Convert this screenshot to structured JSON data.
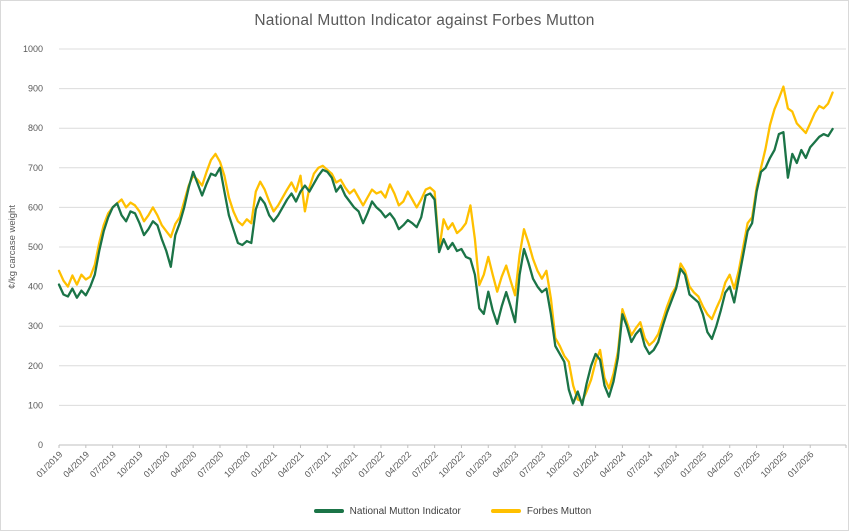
{
  "title": "National Mutton Indicator against Forbes Mutton",
  "colors": {
    "national_mutton_indicator": "#1B7447",
    "forbes_mutton": "#FFC000",
    "gridline": "#DCDCDC",
    "axis_line": "#BFBFBF",
    "tick_label": "#595959",
    "title_text": "#595959",
    "legend_text": "#404040",
    "background": "#FFFFFF"
  },
  "chart_data": {
    "type": "line",
    "title": "National Mutton Indicator against Forbes Mutton",
    "xlabel": "",
    "ylabel": "¢/kg carcase weight",
    "ylim": [
      0,
      1000
    ],
    "y_ticks": [
      0,
      100,
      200,
      300,
      400,
      500,
      600,
      700,
      800,
      900,
      1000
    ],
    "grid": true,
    "legend_position": "bottom",
    "x_unit": "month/year, data sampled twice monthly from 01/2019",
    "points_per_month": 2,
    "x_tick_interval_months": 3,
    "x_tick_labels": [
      "01/2019",
      "04/2019",
      "07/2019",
      "10/2019",
      "01/2020",
      "04/2020",
      "07/2020",
      "10/2020",
      "01/2021",
      "04/2021",
      "07/2021",
      "10/2021",
      "01/2022",
      "04/2022",
      "07/2022",
      "10/2022",
      "01/2023",
      "04/2023",
      "07/2023",
      "10/2023",
      "01/2024",
      "04/2024",
      "07/2024",
      "10/2024",
      "01/2025",
      "04/2025",
      "07/2025",
      "10/2025",
      "01/2026"
    ],
    "series": [
      {
        "name": "National Mutton Indicator",
        "color": "#1B7447",
        "values": [
          405,
          380,
          375,
          395,
          372,
          390,
          378,
          400,
          430,
          490,
          540,
          575,
          600,
          610,
          580,
          565,
          590,
          585,
          560,
          530,
          545,
          565,
          555,
          520,
          490,
          450,
          530,
          560,
          600,
          650,
          690,
          660,
          630,
          660,
          685,
          680,
          700,
          640,
          580,
          545,
          510,
          505,
          515,
          510,
          595,
          625,
          610,
          580,
          565,
          580,
          600,
          620,
          635,
          615,
          640,
          655,
          640,
          660,
          680,
          695,
          690,
          675,
          640,
          655,
          630,
          615,
          600,
          590,
          560,
          585,
          615,
          600,
          590,
          575,
          585,
          570,
          545,
          555,
          568,
          560,
          550,
          575,
          630,
          635,
          620,
          487,
          520,
          495,
          510,
          490,
          495,
          475,
          470,
          430,
          345,
          331,
          387,
          340,
          306,
          350,
          386,
          350,
          310,
          430,
          495,
          460,
          420,
          400,
          386,
          395,
          330,
          250,
          230,
          210,
          140,
          105,
          135,
          101,
          155,
          200,
          230,
          215,
          150,
          122,
          160,
          220,
          330,
          300,
          260,
          280,
          293,
          250,
          230,
          240,
          260,
          300,
          335,
          365,
          395,
          445,
          430,
          380,
          370,
          360,
          330,
          285,
          268,
          300,
          340,
          385,
          400,
          360,
          420,
          480,
          540,
          560,
          640,
          690,
          700,
          725,
          745,
          785,
          790,
          675,
          735,
          712,
          745,
          725,
          752,
          765,
          778,
          785,
          780,
          798
        ]
      },
      {
        "name": "Forbes Mutton",
        "color": "#FFC000",
        "values": [
          440,
          415,
          400,
          428,
          405,
          430,
          418,
          425,
          455,
          510,
          555,
          585,
          600,
          610,
          620,
          600,
          612,
          605,
          590,
          565,
          580,
          600,
          580,
          555,
          540,
          525,
          558,
          575,
          615,
          655,
          680,
          670,
          655,
          690,
          720,
          735,
          715,
          680,
          625,
          590,
          565,
          555,
          570,
          560,
          640,
          665,
          645,
          615,
          590,
          605,
          625,
          645,
          663,
          640,
          680,
          590,
          650,
          685,
          700,
          705,
          695,
          685,
          663,
          670,
          650,
          635,
          645,
          625,
          605,
          625,
          645,
          635,
          640,
          625,
          658,
          635,
          605,
          615,
          640,
          620,
          600,
          620,
          645,
          650,
          640,
          492,
          570,
          545,
          560,
          535,
          545,
          560,
          605,
          520,
          404,
          430,
          475,
          430,
          387,
          425,
          453,
          415,
          378,
          480,
          545,
          510,
          470,
          440,
          420,
          440,
          370,
          270,
          250,
          225,
          210,
          150,
          115,
          110,
          135,
          165,
          210,
          240,
          170,
          143,
          180,
          235,
          343,
          310,
          277,
          295,
          310,
          270,
          252,
          262,
          280,
          315,
          350,
          380,
          400,
          458,
          440,
          400,
          385,
          375,
          350,
          330,
          318,
          345,
          370,
          410,
          430,
          395,
          440,
          500,
          560,
          575,
          650,
          700,
          748,
          808,
          848,
          875,
          905,
          850,
          842,
          812,
          800,
          788,
          812,
          838,
          856,
          850,
          862,
          890
        ]
      }
    ]
  }
}
